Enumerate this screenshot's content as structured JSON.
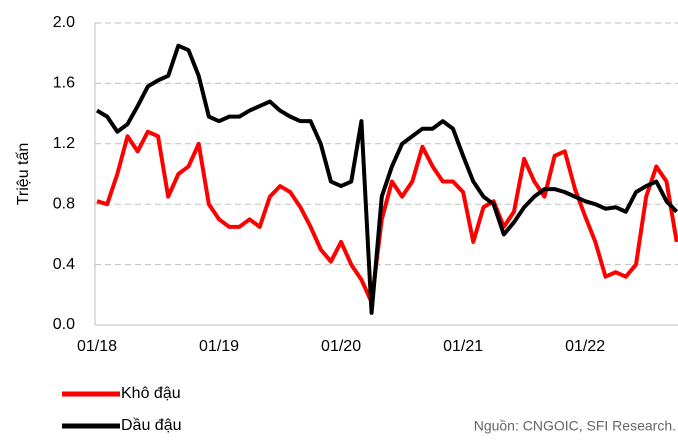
{
  "chart_data": {
    "type": "line",
    "ylabel": "Triệu tấn",
    "source": "Nguồn: CNGOIC, SFI Research.",
    "categories": [
      "01/18",
      null,
      null,
      null,
      null,
      null,
      null,
      null,
      null,
      null,
      null,
      null,
      "01/19",
      null,
      null,
      null,
      null,
      null,
      null,
      null,
      null,
      null,
      null,
      null,
      "01/20",
      null,
      null,
      null,
      null,
      null,
      null,
      null,
      null,
      null,
      null,
      null,
      "01/21",
      null,
      null,
      null,
      null,
      null,
      null,
      null,
      null,
      null,
      null,
      null,
      "01/22",
      null,
      null,
      null,
      null,
      null,
      null,
      null,
      null,
      null
    ],
    "series": [
      {
        "name": "Khô đậu",
        "color": "#ff0000",
        "values": [
          0.82,
          0.8,
          1.0,
          1.25,
          1.15,
          1.28,
          1.25,
          0.85,
          1.0,
          1.05,
          1.2,
          0.8,
          0.7,
          0.65,
          0.65,
          0.7,
          0.65,
          0.85,
          0.92,
          0.88,
          0.78,
          0.65,
          0.5,
          0.42,
          0.55,
          0.4,
          0.3,
          0.15,
          0.7,
          0.95,
          0.85,
          0.95,
          1.18,
          1.05,
          0.95,
          0.95,
          0.88,
          0.55,
          0.78,
          0.82,
          0.65,
          0.75,
          1.1,
          0.95,
          0.85,
          1.12,
          1.15,
          0.9,
          0.72,
          0.55,
          0.32,
          0.35,
          0.32,
          0.4,
          0.85,
          1.05,
          0.95,
          0.55
        ]
      },
      {
        "name": "Dầu đậu",
        "color": "#000000",
        "values": [
          1.42,
          1.38,
          1.28,
          1.33,
          1.45,
          1.58,
          1.62,
          1.65,
          1.85,
          1.82,
          1.65,
          1.38,
          1.35,
          1.38,
          1.38,
          1.42,
          1.45,
          1.48,
          1.42,
          1.38,
          1.35,
          1.35,
          1.2,
          0.95,
          0.92,
          0.95,
          1.35,
          0.08,
          0.85,
          1.05,
          1.2,
          1.25,
          1.3,
          1.3,
          1.35,
          1.3,
          1.12,
          0.95,
          0.85,
          0.8,
          0.6,
          0.68,
          0.78,
          0.85,
          0.9,
          0.9,
          0.88,
          0.85,
          0.82,
          0.8,
          0.77,
          0.78,
          0.75,
          0.88,
          0.92,
          0.95,
          0.82,
          0.75
        ]
      }
    ],
    "ylim": [
      0,
      2
    ],
    "yticks": [
      {
        "value": 0,
        "label": "0.0"
      },
      0.4,
      0.8,
      1.2,
      1.6,
      {
        "value": 2,
        "label": "2.0"
      }
    ],
    "grid": true
  }
}
